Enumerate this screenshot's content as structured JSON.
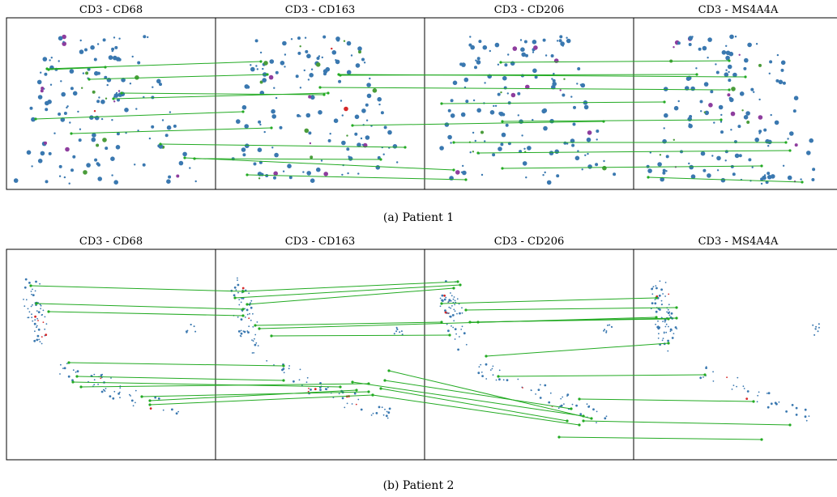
{
  "figures": [
    {
      "caption": "(a) Patient 1",
      "panel_titles": [
        "CD3 - CD68",
        "CD3 - CD163",
        "CD3 - CD206",
        "CD3 - MS4A4A"
      ]
    },
    {
      "caption": "(b) Patient 2",
      "panel_titles": [
        "CD3 - CD68",
        "CD3 - CD163",
        "CD3 - CD206",
        "CD3 - MS4A4A"
      ]
    }
  ],
  "colors": {
    "cell_main": "#3a78b0",
    "cell_purple": "#8e3d9e",
    "cell_green": "#4a9c3a",
    "cell_red": "#d62728",
    "link": "#22aa22",
    "frame": "#000000"
  }
}
